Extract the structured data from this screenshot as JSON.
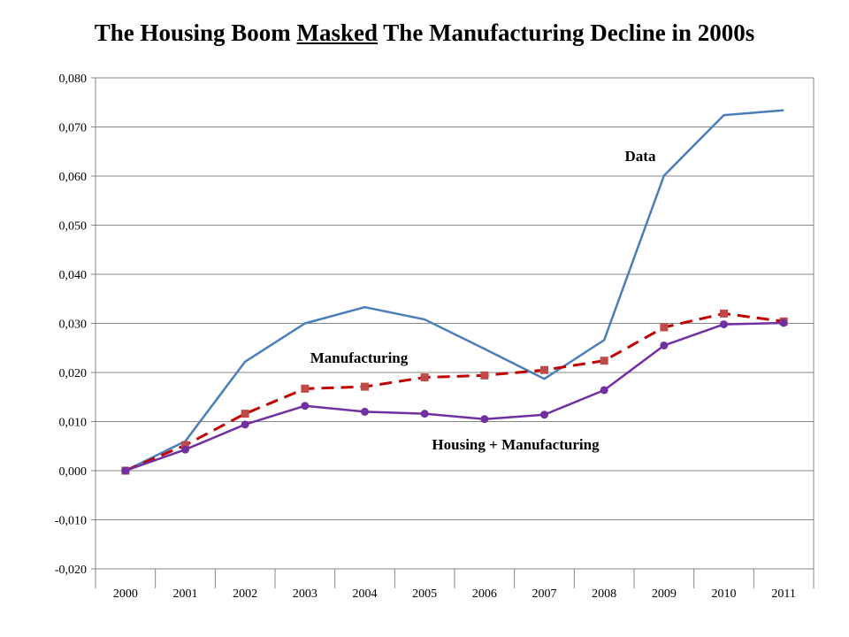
{
  "chart_data": {
    "type": "line",
    "title": {
      "before": "The Housing Boom ",
      "underlined": "Masked",
      "after": " The Manufacturing Decline in 2000s"
    },
    "xlabel": "",
    "ylabel": "",
    "categories": [
      "2000",
      "2001",
      "2002",
      "2003",
      "2004",
      "2005",
      "2006",
      "2007",
      "2008",
      "2009",
      "2010",
      "2011"
    ],
    "ylim": [
      -0.02,
      0.08
    ],
    "y_ticks": [
      "-0,020",
      "-0,010",
      "0,000",
      "0,010",
      "0,020",
      "0,030",
      "0,040",
      "0,050",
      "0,060",
      "0,070",
      "0,080"
    ],
    "grid": true,
    "legend": "none",
    "series": [
      {
        "name": "Data",
        "color": "#4a7ebb",
        "style": "solid",
        "marker": "none",
        "values": [
          0.0,
          0.006,
          0.0222,
          0.03,
          0.0333,
          0.0308,
          0.0248,
          0.0187,
          0.0266,
          0.0601,
          0.0724,
          0.0734
        ]
      },
      {
        "name": "Manufacturing",
        "color": "#be4b48",
        "line_color": "#c00000",
        "style": "dashed",
        "marker": "square",
        "values": [
          0.0,
          0.0052,
          0.0116,
          0.0167,
          0.0171,
          0.019,
          0.0194,
          0.0205,
          0.0224,
          0.0292,
          0.032,
          0.0304
        ]
      },
      {
        "name": "Housing + Manufacturing",
        "color": "#7030a0",
        "style": "solid",
        "marker": "circle",
        "values": [
          0.0,
          0.0043,
          0.0094,
          0.0132,
          0.012,
          0.0116,
          0.0105,
          0.0114,
          0.0164,
          0.0255,
          0.0298,
          0.0301
        ]
      }
    ],
    "annotations": [
      "Data",
      "Manufacturing",
      "Housing + Manufacturing"
    ]
  }
}
